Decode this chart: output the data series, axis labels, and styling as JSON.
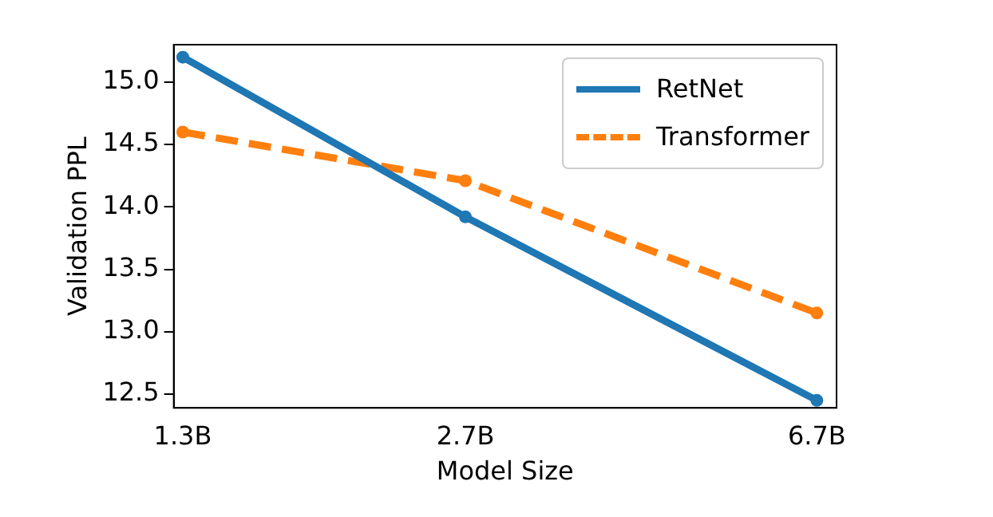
{
  "chart_data": {
    "type": "line",
    "xlabel": "Model Size",
    "ylabel": "Validation PPL",
    "log": "x",
    "x": [
      1.3,
      2.7,
      6.7
    ],
    "series": [
      {
        "name": "RetNet",
        "color": "#1f77b4",
        "values": [
          15.2,
          13.92,
          12.45
        ],
        "line_style": "solid"
      },
      {
        "name": "Transformer",
        "color": "#ff7f0e",
        "values": [
          14.6,
          14.21,
          13.15
        ],
        "line_style": "dashed"
      }
    ],
    "xlim": [
      1.27,
      7.05
    ],
    "xticks": [
      {
        "value": 1.3,
        "label": "1.3B"
      },
      {
        "value": 2.7,
        "label": "2.7B"
      },
      {
        "value": 6.7,
        "label": "6.7B"
      }
    ],
    "ylim": [
      12.39,
      15.3
    ],
    "yticks": [
      12.5,
      {
        "value": 13,
        "label": "13.0"
      },
      13.5,
      {
        "value": 14,
        "label": "14.0"
      },
      14.5,
      {
        "value": 15,
        "label": "15.0"
      }
    ],
    "grid": false,
    "legend": "top right",
    "marker": "circle"
  }
}
